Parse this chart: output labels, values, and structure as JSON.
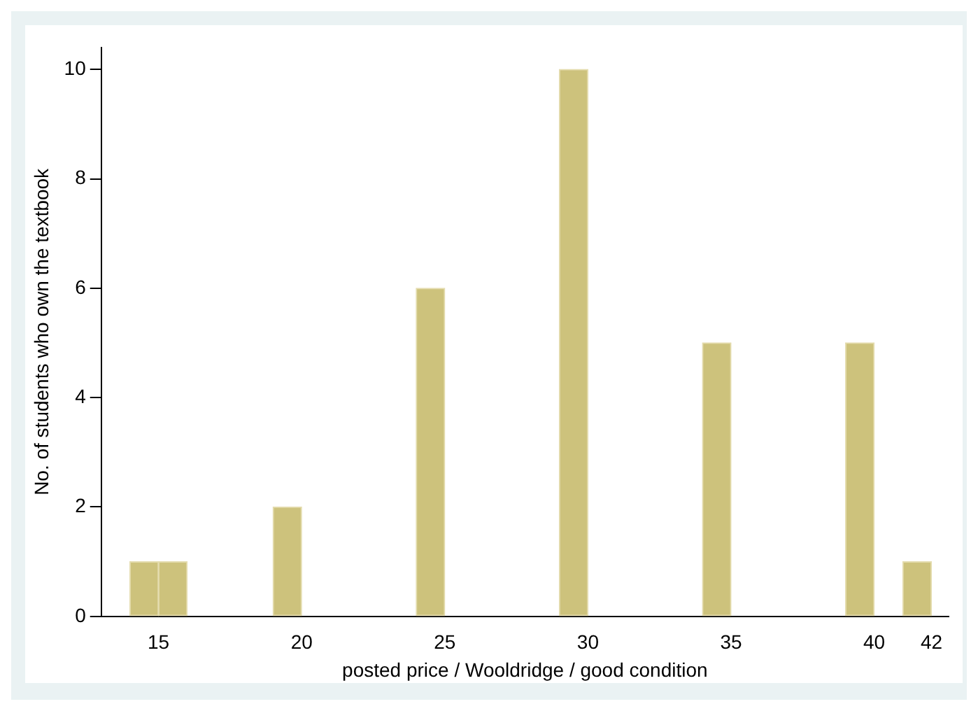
{
  "chart_data": {
    "type": "histogram",
    "xlabel": "posted price / Wooldridge / good condition",
    "ylabel": "No. of students who own the textbook",
    "bins": [
      14,
      15,
      16,
      17,
      18,
      19,
      20,
      21,
      22,
      23,
      24,
      25,
      26,
      27,
      28,
      29,
      30,
      31,
      32,
      33,
      34,
      35,
      36,
      37,
      38,
      39,
      40,
      41,
      42
    ],
    "values": [
      1,
      1,
      0,
      0,
      0,
      2,
      0,
      0,
      0,
      0,
      6,
      0,
      0,
      0,
      0,
      10,
      0,
      0,
      0,
      0,
      5,
      0,
      0,
      0,
      0,
      5,
      0,
      1
    ],
    "color": "#cdc27c",
    "xlim": [
      13,
      42.6
    ],
    "xticks": [
      15,
      20,
      25,
      30,
      35,
      40,
      42
    ],
    "ylim": [
      0,
      10.4
    ],
    "yticks": [
      0,
      2,
      4,
      6,
      8,
      10
    ],
    "grid": false
  }
}
